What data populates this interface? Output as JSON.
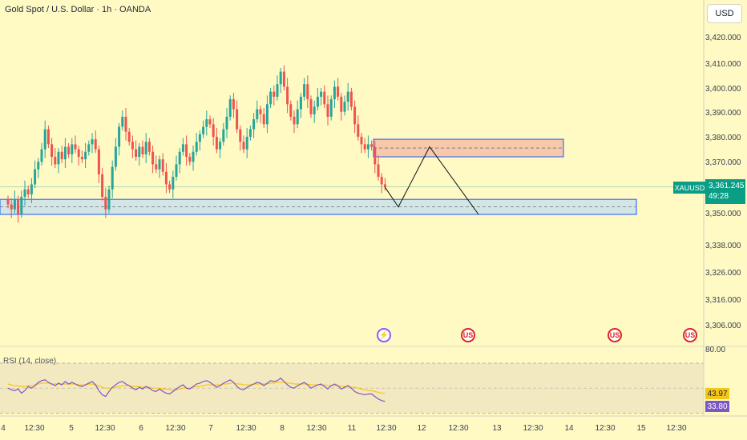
{
  "header": {
    "title": "Gold Spot / U.S. Dollar · 1h · OANDA",
    "currency_button": "USD"
  },
  "price_axis": {
    "labels": [
      "3,420.000",
      "3,410.000",
      "3,400.000",
      "3,390.000",
      "3,380.000",
      "3,370.000",
      "3,350.000",
      "3,338.000",
      "3,326.000",
      "3,316.000",
      "3,306.000"
    ],
    "current": {
      "ticker": "XAUUSD",
      "price": "3,361.245",
      "countdown": "49:28"
    }
  },
  "rsi": {
    "label": "RSI (14, close)",
    "upper_label": "80.00",
    "ma_value": "43.97",
    "value": "33.80"
  },
  "time_axis": {
    "labels": [
      "4",
      "12:30",
      "5",
      "12:30",
      "6",
      "12:30",
      "7",
      "12:30",
      "8",
      "12:30",
      "11",
      "12:30",
      "12",
      "12:30",
      "13",
      "12:30",
      "14",
      "12:30",
      "15",
      "12:30"
    ]
  },
  "events": [
    "lightning-icon",
    "us-flag-icon",
    "us-flag-icon",
    "us-flag-icon"
  ],
  "colors": {
    "background": "#fff9c4",
    "up": "#26a69a",
    "down": "#ef5350",
    "support_zone": "#cfe3e8",
    "resistance_zone": "#f7c4a8",
    "zone_border": "#2962ff",
    "rsi_line": "#7e57c2",
    "rsi_ma": "#f5c518",
    "accent": "#0a9e87"
  },
  "chart_data": {
    "type": "candlestick",
    "symbol": "XAUUSD",
    "interval": "1h",
    "ylim": [
      3300,
      3428
    ],
    "closes": [
      3354,
      3352,
      3356,
      3350,
      3357,
      3360,
      3358,
      3362,
      3368,
      3371,
      3376,
      3384,
      3378,
      3373,
      3370,
      3375,
      3372,
      3377,
      3374,
      3378,
      3376,
      3373,
      3372,
      3375,
      3378,
      3380,
      3376,
      3366,
      3357,
      3352,
      3360,
      3369,
      3377,
      3385,
      3389,
      3383,
      3379,
      3376,
      3373,
      3377,
      3374,
      3379,
      3375,
      3370,
      3368,
      3372,
      3367,
      3362,
      3360,
      3365,
      3370,
      3375,
      3378,
      3373,
      3371,
      3375,
      3379,
      3382,
      3385,
      3388,
      3386,
      3381,
      3376,
      3379,
      3384,
      3389,
      3396,
      3392,
      3384,
      3379,
      3376,
      3381,
      3384,
      3388,
      3392,
      3390,
      3386,
      3394,
      3399,
      3397,
      3402,
      3407,
      3401,
      3394,
      3389,
      3386,
      3392,
      3397,
      3402,
      3396,
      3390,
      3393,
      3397,
      3399,
      3394,
      3389,
      3396,
      3401,
      3397,
      3391,
      3395,
      3399,
      3393,
      3386,
      3381,
      3378,
      3376,
      3378,
      3377,
      3370,
      3365,
      3362,
      3361
    ],
    "zones": [
      {
        "name": "resistance",
        "from": 3373,
        "to": 3380
      },
      {
        "name": "support",
        "from": 3350,
        "to": 3356
      }
    ],
    "projection": [
      3361,
      3353,
      3377,
      3350
    ],
    "rsi": {
      "upper": 80,
      "lower": 20,
      "series": [
        50,
        48,
        47,
        49,
        44,
        47,
        52,
        50,
        53,
        57,
        59,
        60,
        57,
        55,
        53,
        56,
        54,
        58,
        55,
        57,
        55,
        53,
        52,
        54,
        56,
        58,
        54,
        47,
        42,
        40,
        46,
        51,
        54,
        57,
        58,
        55,
        53,
        50,
        48,
        51,
        49,
        52,
        50,
        47,
        46,
        49,
        46,
        44,
        43,
        46,
        49,
        52,
        54,
        50,
        49,
        52,
        55,
        56,
        58,
        59,
        57,
        54,
        51,
        53,
        56,
        58,
        60,
        57,
        52,
        49,
        48,
        51,
        53,
        55,
        57,
        56,
        53,
        56,
        59,
        58,
        59,
        62,
        58,
        54,
        51,
        50,
        53,
        55,
        57,
        54,
        50,
        52,
        54,
        55,
        52,
        49,
        53,
        55,
        53,
        49,
        51,
        53,
        50,
        46,
        44,
        43,
        42,
        43,
        43,
        40,
        37,
        35,
        34
      ],
      "ma": [
        55,
        54,
        53,
        53,
        52,
        52,
        53,
        53,
        54,
        55,
        56,
        56,
        56,
        55,
        55,
        55,
        55,
        55,
        55,
        55,
        55,
        54,
        54,
        54,
        55,
        55,
        54,
        53,
        51,
        50,
        50,
        50,
        51,
        52,
        53,
        53,
        53,
        52,
        52,
        52,
        51,
        51,
        51,
        50,
        50,
        50,
        49,
        49,
        48,
        48,
        48,
        49,
        50,
        50,
        50,
        51,
        52,
        52,
        53,
        54,
        54,
        54,
        54,
        54,
        55,
        55,
        56,
        56,
        55,
        55,
        54,
        54,
        54,
        55,
        55,
        55,
        55,
        55,
        56,
        56,
        57,
        57,
        57,
        56,
        56,
        55,
        55,
        55,
        55,
        55,
        54,
        54,
        54,
        54,
        54,
        53,
        53,
        53,
        53,
        52,
        52,
        52,
        51,
        51,
        50,
        49,
        48,
        47,
        47,
        46,
        45,
        44,
        44
      ]
    }
  }
}
